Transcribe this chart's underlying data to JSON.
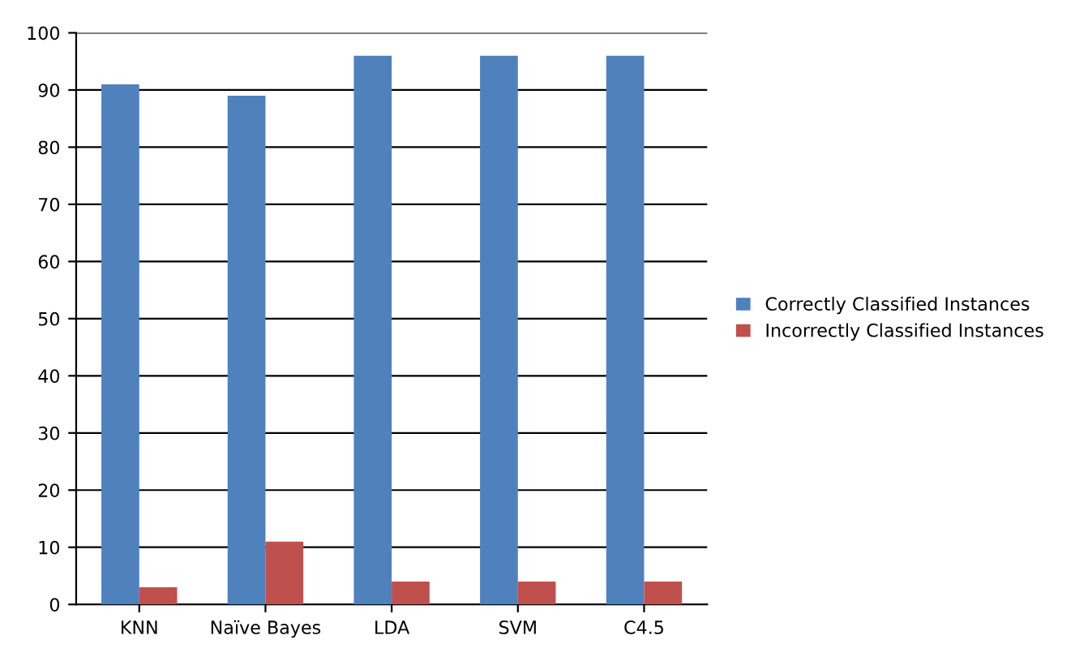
{
  "chart_data": {
    "type": "bar",
    "categories": [
      "KNN",
      "Naïve Bayes",
      "LDA",
      "SVM",
      "C4.5"
    ],
    "series": [
      {
        "name": "Correctly Classified Instances",
        "color": "#4f81bd",
        "values": [
          91,
          89,
          96,
          96,
          96
        ]
      },
      {
        "name": "Incorrectly Classified Instances",
        "color": "#c0504d",
        "values": [
          3,
          11,
          4,
          4,
          4
        ]
      }
    ],
    "ylim": [
      0,
      100
    ],
    "yticks": [
      0,
      10,
      20,
      30,
      40,
      50,
      60,
      70,
      80,
      90,
      100
    ],
    "grid": "y",
    "legend": "right"
  }
}
